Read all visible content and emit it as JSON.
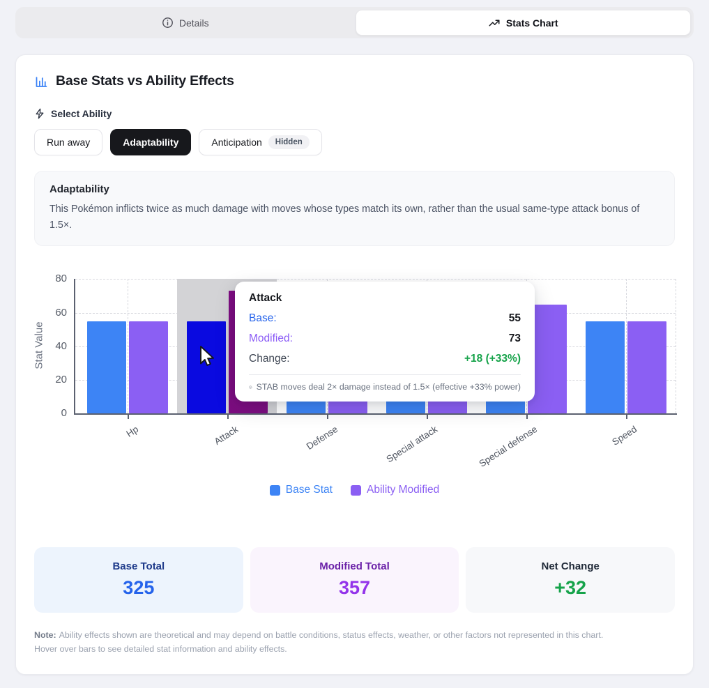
{
  "tab_bar": {
    "tabs": [
      {
        "label": "Details",
        "icon": "info-icon",
        "active": false
      },
      {
        "label": "Stats Chart",
        "icon": "trending-up-icon",
        "active": true
      }
    ]
  },
  "panel": {
    "title": "Base Stats vs Ability Effects",
    "select_ability_label": "Select Ability",
    "abilities": [
      {
        "label": "Run away",
        "selected": false
      },
      {
        "label": "Adaptability",
        "selected": true
      },
      {
        "label": "Anticipation",
        "selected": false,
        "badge": "Hidden"
      }
    ],
    "ability_description": {
      "title": "Adaptability",
      "text": "This Pokémon inflicts twice as much damage with moves whose types match its own, rather than the usual same-type attack bonus of 1.5×."
    }
  },
  "chart_data": {
    "type": "bar",
    "title": "Base Stats vs Ability Effects",
    "categories": [
      "Hp",
      "Attack",
      "Defense",
      "Special attack",
      "Special defense",
      "Speed"
    ],
    "series": [
      {
        "name": "Base Stat",
        "color": "#3d84f5",
        "values": [
          55,
          55,
          50,
          45,
          65,
          55
        ]
      },
      {
        "name": "Ability Modified",
        "color": "#8b5ff3",
        "values": [
          55,
          73,
          50,
          59,
          65,
          55
        ]
      }
    ],
    "hover_highlight": {
      "category_index": 1,
      "band_color": "#d3d3d6",
      "base_color": "#0a0ae0",
      "modified_color": "#7d0c80"
    },
    "ylabel": "Stat Value",
    "ylim": [
      0,
      80
    ],
    "yticks": [
      0,
      20,
      40,
      60,
      80
    ],
    "grid": "dashed",
    "legend_position": "bottom"
  },
  "tooltip": {
    "title": "Attack",
    "rows": [
      {
        "label": "Base:",
        "value": "55",
        "label_color": "#2563eb",
        "value_color": "#16181d"
      },
      {
        "label": "Modified:",
        "value": "73",
        "label_color": "#8b5cf6",
        "value_color": "#16181d"
      },
      {
        "label": "Change:",
        "value": "+18 (+33%)",
        "label_color": "#3f4754",
        "value_color": "#16a34a"
      }
    ],
    "footnote": "STAB moves deal 2× damage instead of 1.5× (effective +33% power)"
  },
  "summary_cards": [
    {
      "label": "Base Total",
      "value": "325",
      "bg": "#edf4fd",
      "label_color": "#1e3a8a",
      "value_color": "#2563eb"
    },
    {
      "label": "Modified Total",
      "value": "357",
      "bg": "#faf4fd",
      "label_color": "#6b21a8",
      "value_color": "#9333ea"
    },
    {
      "label": "Net Change",
      "value": "+32",
      "bg": "#f7f8fa",
      "label_color": "#1f2937",
      "value_color": "#16a34a"
    }
  ],
  "footer_note": {
    "prefix": "Note:",
    "line1": "Ability effects shown are theoretical and may depend on battle conditions, status effects, weather, or other factors not represented in this chart.",
    "line2": "Hover over bars to see detailed stat information and ability effects."
  }
}
